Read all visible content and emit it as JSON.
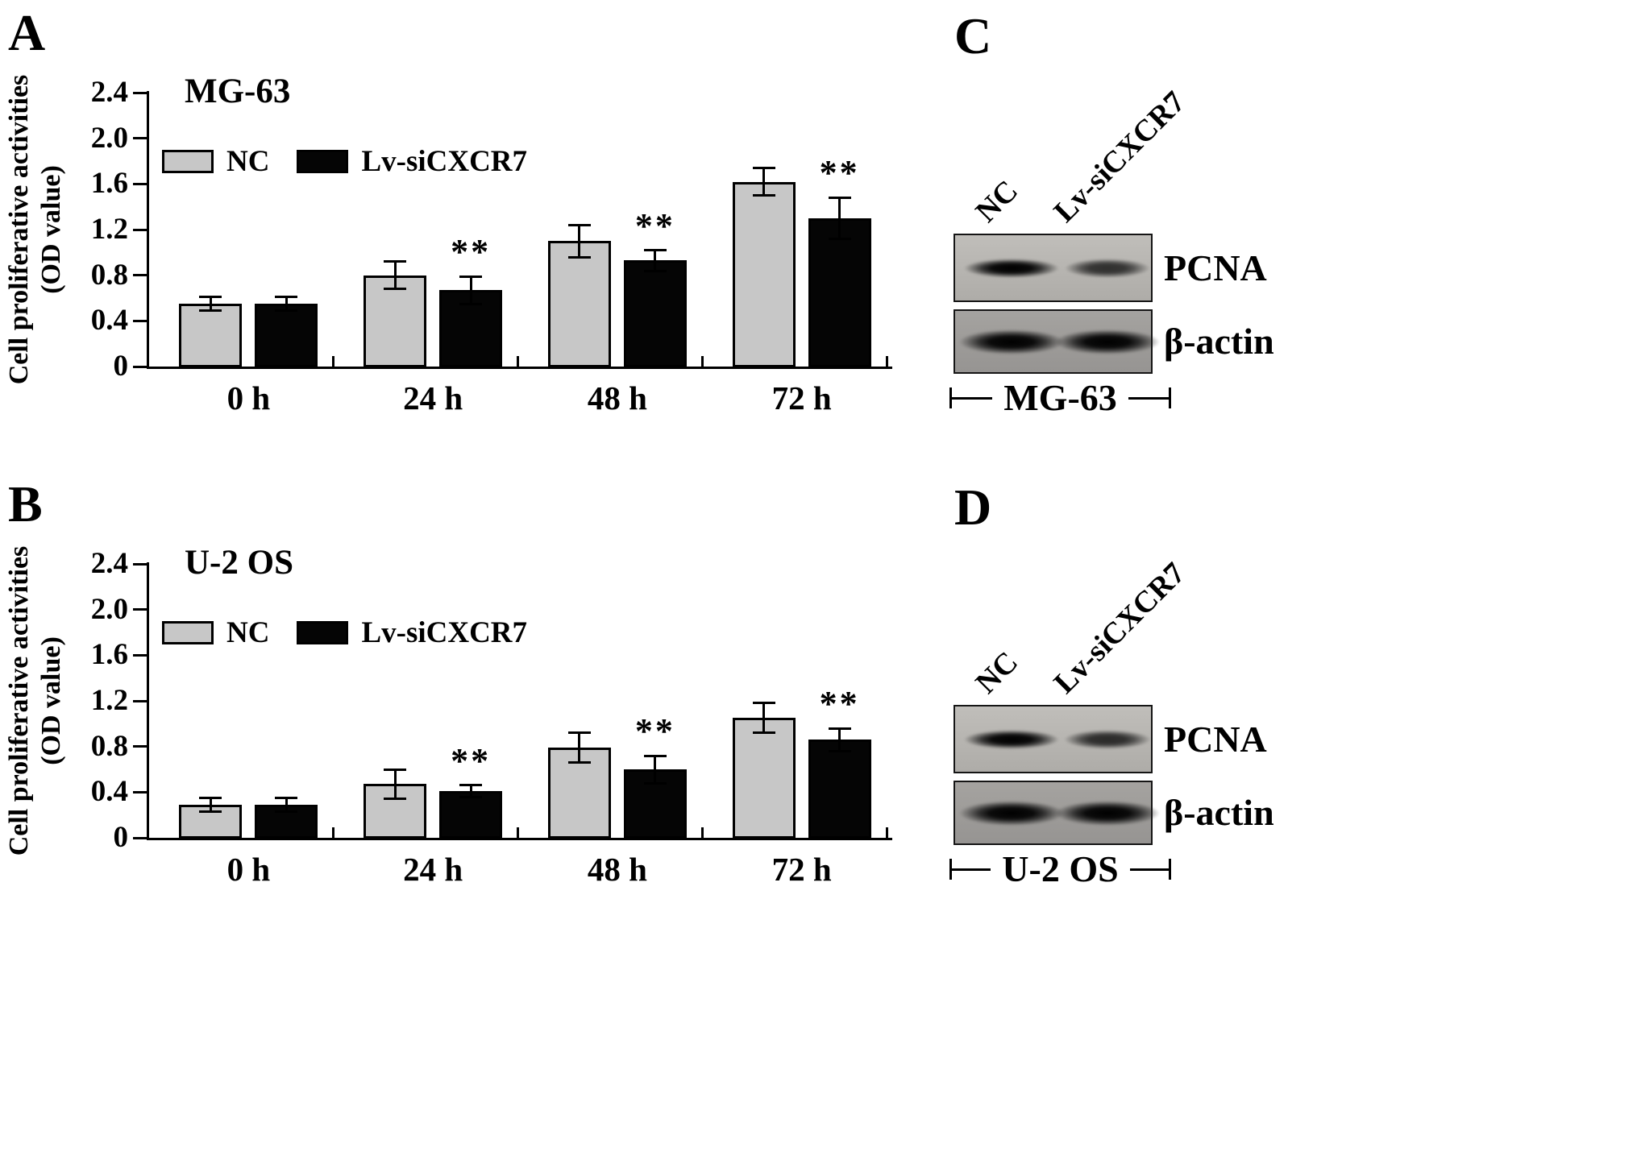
{
  "figure_bg": "#ffffff",
  "panels": {
    "a": {
      "letter": "A",
      "ylabel_line1": "Cell proliferative activities",
      "ylabel_line2": "(OD value)"
    },
    "b": {
      "letter": "B",
      "ylabel_line1": "Cell proliferative activities",
      "ylabel_line2": "(OD value)"
    },
    "c": {
      "letter": "C"
    },
    "d": {
      "letter": "D"
    }
  },
  "chart_data": [
    {
      "type": "bar",
      "panel": "A",
      "title": "MG-63",
      "ylabel": "Cell proliferative activities (OD value)",
      "xlabel": "",
      "categories": [
        "0 h",
        "24 h",
        "48 h",
        "72 h"
      ],
      "ylim": [
        0,
        2.4
      ],
      "yticks": [
        "0",
        "0.4",
        "0.8",
        "1.2",
        "1.6",
        "2.0",
        "2.4"
      ],
      "grid": false,
      "legend_position": "top-left",
      "series": [
        {
          "name": "NC",
          "color": "#c7c7c7",
          "values": [
            0.55,
            0.8,
            1.1,
            1.62
          ],
          "errors": [
            0.06,
            0.12,
            0.14,
            0.12
          ],
          "sig": [
            "",
            "",
            "",
            ""
          ]
        },
        {
          "name": "Lv-siCXCR7",
          "color": "#050505",
          "values": [
            0.55,
            0.67,
            0.93,
            1.3
          ],
          "errors": [
            0.06,
            0.12,
            0.09,
            0.18
          ],
          "sig": [
            "",
            "**",
            "**",
            "**"
          ]
        }
      ]
    },
    {
      "type": "bar",
      "panel": "B",
      "title": "U-2 OS",
      "ylabel": "Cell proliferative activities (OD value)",
      "xlabel": "",
      "categories": [
        "0 h",
        "24 h",
        "48 h",
        "72 h"
      ],
      "ylim": [
        0,
        2.4
      ],
      "yticks": [
        "0",
        "0.4",
        "0.8",
        "1.2",
        "1.6",
        "2.0",
        "2.4"
      ],
      "grid": false,
      "legend_position": "top-left",
      "series": [
        {
          "name": "NC",
          "color": "#c7c7c7",
          "values": [
            0.29,
            0.47,
            0.79,
            1.05
          ],
          "errors": [
            0.06,
            0.13,
            0.13,
            0.13
          ],
          "sig": [
            "",
            "",
            "",
            ""
          ]
        },
        {
          "name": "Lv-siCXCR7",
          "color": "#050505",
          "values": [
            0.29,
            0.41,
            0.6,
            0.86
          ],
          "errors": [
            0.06,
            0.05,
            0.12,
            0.1
          ],
          "sig": [
            "",
            "**",
            "**",
            "**"
          ]
        }
      ]
    }
  ],
  "blots": [
    {
      "panel": "C",
      "cell_line": "MG-63",
      "lane_labels": [
        "NC",
        "Lv-siCXCR7"
      ],
      "rows": [
        {
          "label": "PCNA",
          "band_intensities": [
            1.0,
            0.55
          ]
        },
        {
          "label": "β-actin",
          "band_intensities": [
            1.0,
            1.0
          ]
        }
      ]
    },
    {
      "panel": "D",
      "cell_line": "U-2 OS",
      "lane_labels": [
        "NC",
        "Lv-siCXCR7"
      ],
      "rows": [
        {
          "label": "PCNA",
          "band_intensities": [
            1.0,
            0.6
          ]
        },
        {
          "label": "β-actin",
          "band_intensities": [
            1.0,
            1.0
          ]
        }
      ]
    }
  ]
}
